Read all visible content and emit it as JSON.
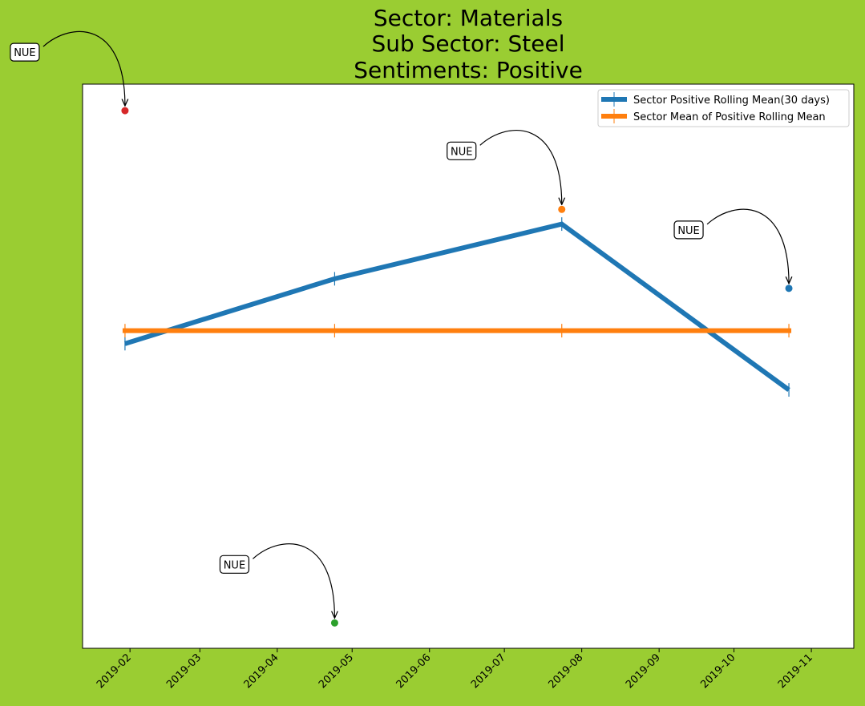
{
  "chart_data": {
    "type": "line",
    "title_lines": [
      "Sector:  Materials",
      "Sub Sector:  Steel",
      "Sentiments:  Positive"
    ],
    "xlabel": "",
    "ylabel": "",
    "x_axis_type": "date",
    "xlim": [
      "2019-01-13",
      "2019-11-18"
    ],
    "ylim": [
      0.0,
      1.0
    ],
    "x_ticks": [
      "2019-02-01",
      "2019-03-01",
      "2019-04-01",
      "2019-05-01",
      "2019-06-01",
      "2019-07-01",
      "2019-08-01",
      "2019-09-01",
      "2019-10-01",
      "2019-11-01"
    ],
    "x_tick_labels": [
      "2019-02",
      "2019-03",
      "2019-04",
      "2019-05",
      "2019-06",
      "2019-07",
      "2019-08",
      "2019-09",
      "2019-10",
      "2019-11"
    ],
    "y_ticks_visible": false,
    "grid": false,
    "legend_position": "top-right",
    "series": [
      {
        "name": "Sector Positive Rolling Mean(30 days)",
        "color": "#1f77b4",
        "x": [
          "2019-01-30",
          "2019-04-24",
          "2019-07-24",
          "2019-10-23"
        ],
        "values": [
          0.54,
          0.655,
          0.752,
          0.458
        ],
        "errors": [
          0.012,
          0.012,
          0.012,
          0.012
        ]
      },
      {
        "name": "Sector Mean of Positive Rolling Mean",
        "color": "#ff7f0e",
        "x": [
          "2019-01-30",
          "2019-04-24",
          "2019-07-24",
          "2019-10-23"
        ],
        "values": [
          0.563,
          0.563,
          0.563,
          0.563
        ],
        "errors": [
          0.012,
          0.012,
          0.012,
          0.012
        ]
      }
    ],
    "annotated_points": [
      {
        "label": "NUE",
        "x": "2019-01-30",
        "value": 0.953,
        "color": "#d62728"
      },
      {
        "label": "NUE",
        "x": "2019-04-24",
        "value": 0.045,
        "color": "#2ca02c"
      },
      {
        "label": "NUE",
        "x": "2019-07-24",
        "value": 0.778,
        "color": "#ff7f0e"
      },
      {
        "label": "NUE",
        "x": "2019-10-23",
        "value": 0.638,
        "color": "#1f77b4"
      }
    ]
  }
}
